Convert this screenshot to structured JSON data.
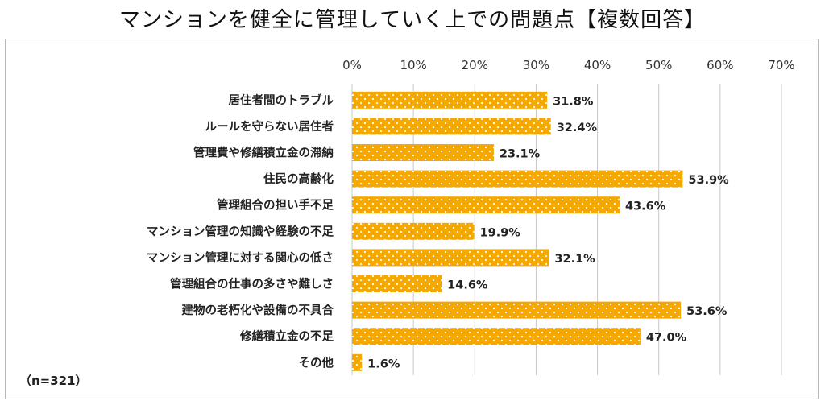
{
  "note": "（n=321）",
  "chart_data": {
    "type": "bar",
    "orientation": "horizontal",
    "title": "マンションを健全に管理していく上での問題点【複数回答】",
    "categories": [
      "居住者間のトラブル",
      "ルールを守らない居住者",
      "管理費や修繕積立金の滞納",
      "住民の高齢化",
      "管理組合の担い手不足",
      "マンション管理の知識や経験の不足",
      "マンション管理に対する関心の低さ",
      "管理組合の仕事の多さや難しさ",
      "建物の老朽化や設備の不具合",
      "修繕積立金の不足",
      "その他"
    ],
    "values": [
      31.8,
      32.4,
      23.1,
      53.9,
      43.6,
      19.9,
      32.1,
      14.6,
      53.6,
      47.0,
      1.6
    ],
    "value_labels": [
      "31.8%",
      "32.4%",
      "23.1%",
      "53.9%",
      "43.6%",
      "19.9%",
      "32.1%",
      "14.6%",
      "53.6%",
      "47.0%",
      "1.6%"
    ],
    "xlim": [
      0,
      70
    ],
    "xticks": [
      0,
      10,
      20,
      30,
      40,
      50,
      60,
      70
    ],
    "xtick_labels": [
      "0%",
      "10%",
      "20%",
      "30%",
      "40%",
      "50%",
      "60%",
      "70%"
    ],
    "xaxis_position": "top",
    "grid": true,
    "bar_color": "#f5a800",
    "bar_pattern": "white dots"
  }
}
